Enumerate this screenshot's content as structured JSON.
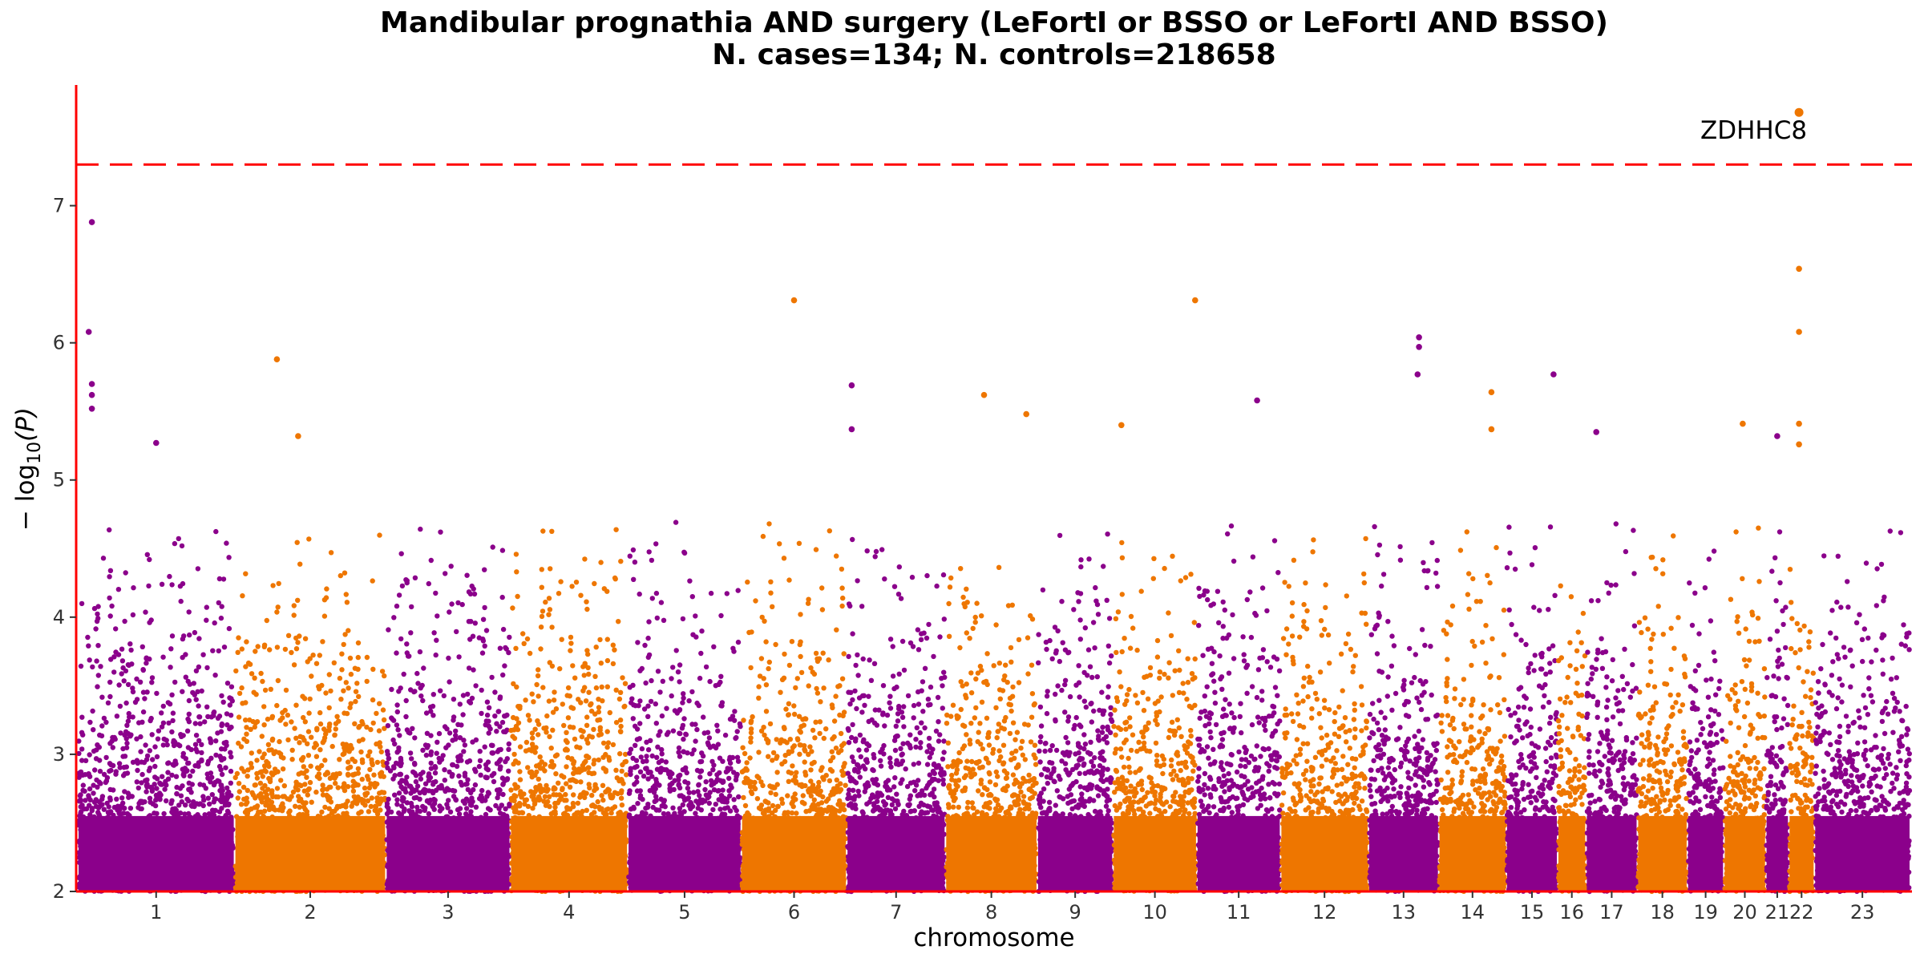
{
  "chart_data": {
    "type": "scatter",
    "subtype": "manhattan",
    "title": "Mandibular prognathia AND surgery (LeFortI or BSSO or LeFortI AND BSSO)",
    "subtitle": "N. cases=134; N. controls=218658",
    "xlabel": "chromosome",
    "ylabel_base": "− log",
    "ylabel_sub": "10",
    "ylabel_arg": "(P)",
    "ylim": [
      2,
      7.88
    ],
    "yticks": [
      2,
      3,
      4,
      5,
      6,
      7
    ],
    "significance_line": 7.3,
    "colors": {
      "odd": "#8B008B",
      "even": "#EE7600",
      "threshold": "#FF0000",
      "axis": "#FF0000"
    },
    "chromosomes": [
      {
        "label": "1",
        "len": 5.8
      },
      {
        "label": "2",
        "len": 5.6
      },
      {
        "label": "3",
        "len": 4.6
      },
      {
        "label": "4",
        "len": 4.35
      },
      {
        "label": "5",
        "len": 4.2
      },
      {
        "label": "6",
        "len": 3.9
      },
      {
        "label": "7",
        "len": 3.65
      },
      {
        "label": "8",
        "len": 3.4
      },
      {
        "label": "9",
        "len": 2.8
      },
      {
        "label": "10",
        "len": 3.1
      },
      {
        "label": "11",
        "len": 3.1
      },
      {
        "label": "12",
        "len": 3.25
      },
      {
        "label": "13",
        "len": 2.6
      },
      {
        "label": "14",
        "len": 2.5
      },
      {
        "label": "15",
        "len": 1.9
      },
      {
        "label": "16",
        "len": 1.05
      },
      {
        "label": "17",
        "len": 1.9
      },
      {
        "label": "18",
        "len": 1.85
      },
      {
        "label": "19",
        "len": 1.35
      },
      {
        "label": "20",
        "len": 1.55
      },
      {
        "label": "21",
        "len": 0.85
      },
      {
        "label": "22",
        "len": 0.95
      },
      {
        "label": "23",
        "len": 3.55
      }
    ],
    "top_points": [
      {
        "chr": "1",
        "pos": 0.09,
        "y": 6.88
      },
      {
        "chr": "1",
        "pos": 0.07,
        "y": 6.08
      },
      {
        "chr": "1",
        "pos": 0.09,
        "y": 5.7
      },
      {
        "chr": "1",
        "pos": 0.09,
        "y": 5.62
      },
      {
        "chr": "1",
        "pos": 0.09,
        "y": 5.52
      },
      {
        "chr": "1",
        "pos": 0.5,
        "y": 5.27
      },
      {
        "chr": "2",
        "pos": 0.28,
        "y": 5.88
      },
      {
        "chr": "2",
        "pos": 0.42,
        "y": 5.32
      },
      {
        "chr": "6",
        "pos": 0.5,
        "y": 6.31
      },
      {
        "chr": "7",
        "pos": 0.05,
        "y": 5.69
      },
      {
        "chr": "7",
        "pos": 0.05,
        "y": 5.37
      },
      {
        "chr": "8",
        "pos": 0.42,
        "y": 5.62
      },
      {
        "chr": "8",
        "pos": 0.88,
        "y": 5.48
      },
      {
        "chr": "10",
        "pos": 0.1,
        "y": 5.4
      },
      {
        "chr": "10",
        "pos": 0.98,
        "y": 6.31
      },
      {
        "chr": "11",
        "pos": 0.72,
        "y": 5.58
      },
      {
        "chr": "13",
        "pos": 0.72,
        "y": 6.04
      },
      {
        "chr": "13",
        "pos": 0.72,
        "y": 5.97
      },
      {
        "chr": "13",
        "pos": 0.7,
        "y": 5.77
      },
      {
        "chr": "14",
        "pos": 0.78,
        "y": 5.64
      },
      {
        "chr": "14",
        "pos": 0.78,
        "y": 5.37
      },
      {
        "chr": "15",
        "pos": 0.92,
        "y": 5.77
      },
      {
        "chr": "17",
        "pos": 0.2,
        "y": 5.35
      },
      {
        "chr": "20",
        "pos": 0.45,
        "y": 5.41
      },
      {
        "chr": "21",
        "pos": 0.5,
        "y": 5.32
      },
      {
        "chr": "22",
        "pos": 0.4,
        "y": 7.68
      },
      {
        "chr": "22",
        "pos": 0.4,
        "y": 6.54
      },
      {
        "chr": "22",
        "pos": 0.4,
        "y": 6.08
      },
      {
        "chr": "22",
        "pos": 0.4,
        "y": 5.41
      },
      {
        "chr": "22",
        "pos": 0.4,
        "y": 5.26
      }
    ],
    "annotations": [
      {
        "text": "ZDHHC8",
        "chr": "22",
        "pos": 0.4,
        "y": 7.68
      }
    ]
  }
}
